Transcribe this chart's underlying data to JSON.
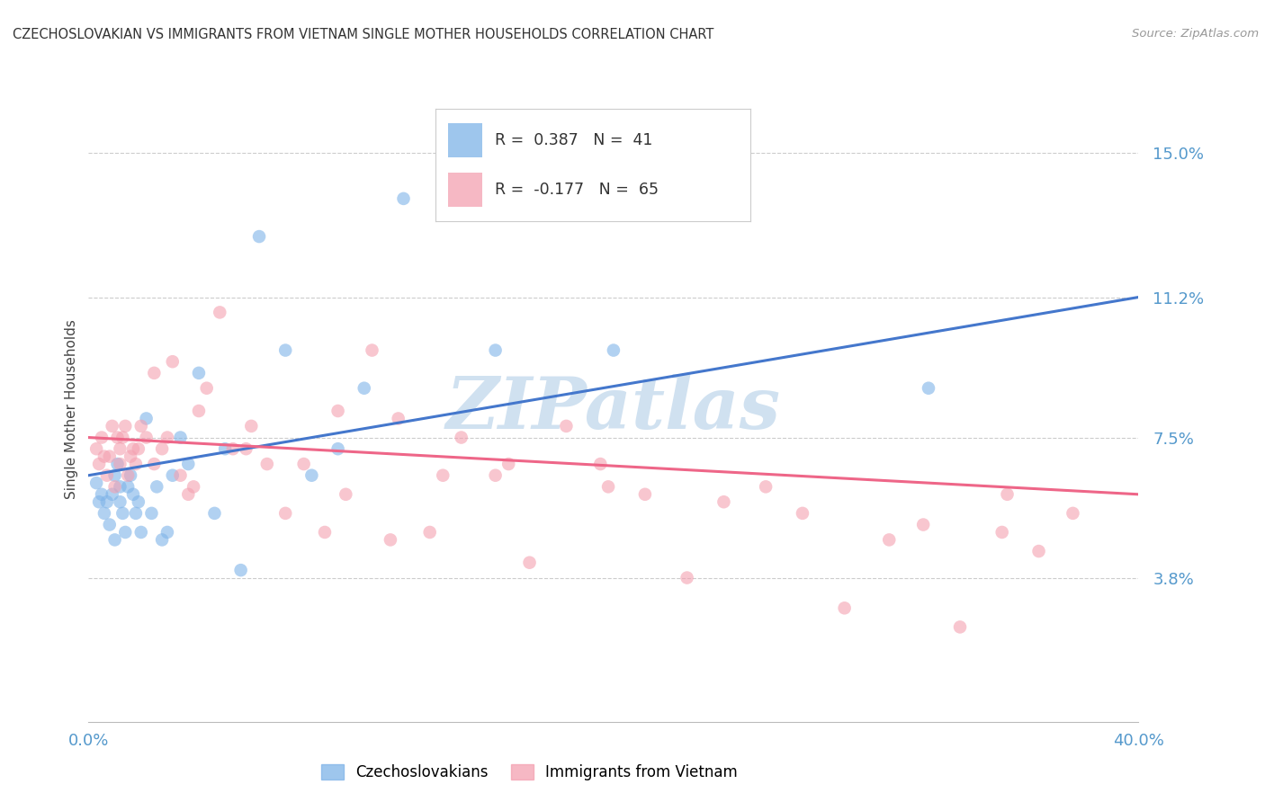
{
  "title": "CZECHOSLOVAKIAN VS IMMIGRANTS FROM VIETNAM SINGLE MOTHER HOUSEHOLDS CORRELATION CHART",
  "source": "Source: ZipAtlas.com",
  "ylabel": "Single Mother Households",
  "xlim": [
    0.0,
    0.4
  ],
  "ylim": [
    0.0,
    0.165
  ],
  "yticks": [
    0.038,
    0.075,
    0.112,
    0.15
  ],
  "ytick_labels": [
    "3.8%",
    "7.5%",
    "11.2%",
    "15.0%"
  ],
  "xticks": [
    0.0,
    0.1,
    0.2,
    0.3,
    0.4
  ],
  "xtick_labels": [
    "0.0%",
    "",
    "",
    "",
    "40.0%"
  ],
  "blue_R": 0.387,
  "blue_N": 41,
  "pink_R": -0.177,
  "pink_N": 65,
  "blue_color": "#7EB3E8",
  "pink_color": "#F4A0B0",
  "blue_line_color": "#4477CC",
  "pink_line_color": "#EE6688",
  "watermark": "ZIPatlas",
  "watermark_color": "#C8DCEE",
  "legend_label_blue": "Czechoslovakians",
  "legend_label_pink": "Immigrants from Vietnam",
  "background_color": "#FFFFFF",
  "grid_color": "#CCCCCC",
  "axis_color": "#5599CC",
  "blue_line_x0": 0.0,
  "blue_line_y0": 0.065,
  "blue_line_x1": 0.4,
  "blue_line_y1": 0.112,
  "pink_line_x0": 0.0,
  "pink_line_y0": 0.075,
  "pink_line_x1": 0.4,
  "pink_line_y1": 0.06,
  "blue_x": [
    0.003,
    0.004,
    0.005,
    0.006,
    0.007,
    0.008,
    0.009,
    0.01,
    0.01,
    0.011,
    0.012,
    0.012,
    0.013,
    0.014,
    0.015,
    0.016,
    0.017,
    0.018,
    0.019,
    0.02,
    0.022,
    0.024,
    0.026,
    0.028,
    0.03,
    0.032,
    0.035,
    0.038,
    0.042,
    0.048,
    0.052,
    0.058,
    0.065,
    0.075,
    0.085,
    0.095,
    0.105,
    0.12,
    0.155,
    0.2,
    0.32
  ],
  "blue_y": [
    0.063,
    0.058,
    0.06,
    0.055,
    0.058,
    0.052,
    0.06,
    0.048,
    0.065,
    0.068,
    0.058,
    0.062,
    0.055,
    0.05,
    0.062,
    0.065,
    0.06,
    0.055,
    0.058,
    0.05,
    0.08,
    0.055,
    0.062,
    0.048,
    0.05,
    0.065,
    0.075,
    0.068,
    0.092,
    0.055,
    0.072,
    0.04,
    0.128,
    0.098,
    0.065,
    0.072,
    0.088,
    0.138,
    0.098,
    0.098,
    0.088
  ],
  "pink_x": [
    0.003,
    0.004,
    0.005,
    0.006,
    0.007,
    0.008,
    0.009,
    0.01,
    0.011,
    0.012,
    0.012,
    0.013,
    0.014,
    0.015,
    0.016,
    0.017,
    0.018,
    0.019,
    0.02,
    0.022,
    0.025,
    0.028,
    0.032,
    0.035,
    0.038,
    0.042,
    0.045,
    0.05,
    0.055,
    0.062,
    0.068,
    0.075,
    0.082,
    0.09,
    0.098,
    0.108,
    0.118,
    0.13,
    0.142,
    0.155,
    0.168,
    0.182,
    0.198,
    0.212,
    0.228,
    0.242,
    0.258,
    0.272,
    0.288,
    0.305,
    0.318,
    0.332,
    0.348,
    0.362,
    0.375,
    0.025,
    0.03,
    0.04,
    0.06,
    0.095,
    0.115,
    0.135,
    0.16,
    0.195,
    0.35
  ],
  "pink_y": [
    0.072,
    0.068,
    0.075,
    0.07,
    0.065,
    0.07,
    0.078,
    0.062,
    0.075,
    0.068,
    0.072,
    0.075,
    0.078,
    0.065,
    0.07,
    0.072,
    0.068,
    0.072,
    0.078,
    0.075,
    0.092,
    0.072,
    0.095,
    0.065,
    0.06,
    0.082,
    0.088,
    0.108,
    0.072,
    0.078,
    0.068,
    0.055,
    0.068,
    0.05,
    0.06,
    0.098,
    0.08,
    0.05,
    0.075,
    0.065,
    0.042,
    0.078,
    0.062,
    0.06,
    0.038,
    0.058,
    0.062,
    0.055,
    0.03,
    0.048,
    0.052,
    0.025,
    0.05,
    0.045,
    0.055,
    0.068,
    0.075,
    0.062,
    0.072,
    0.082,
    0.048,
    0.065,
    0.068,
    0.068,
    0.06
  ]
}
